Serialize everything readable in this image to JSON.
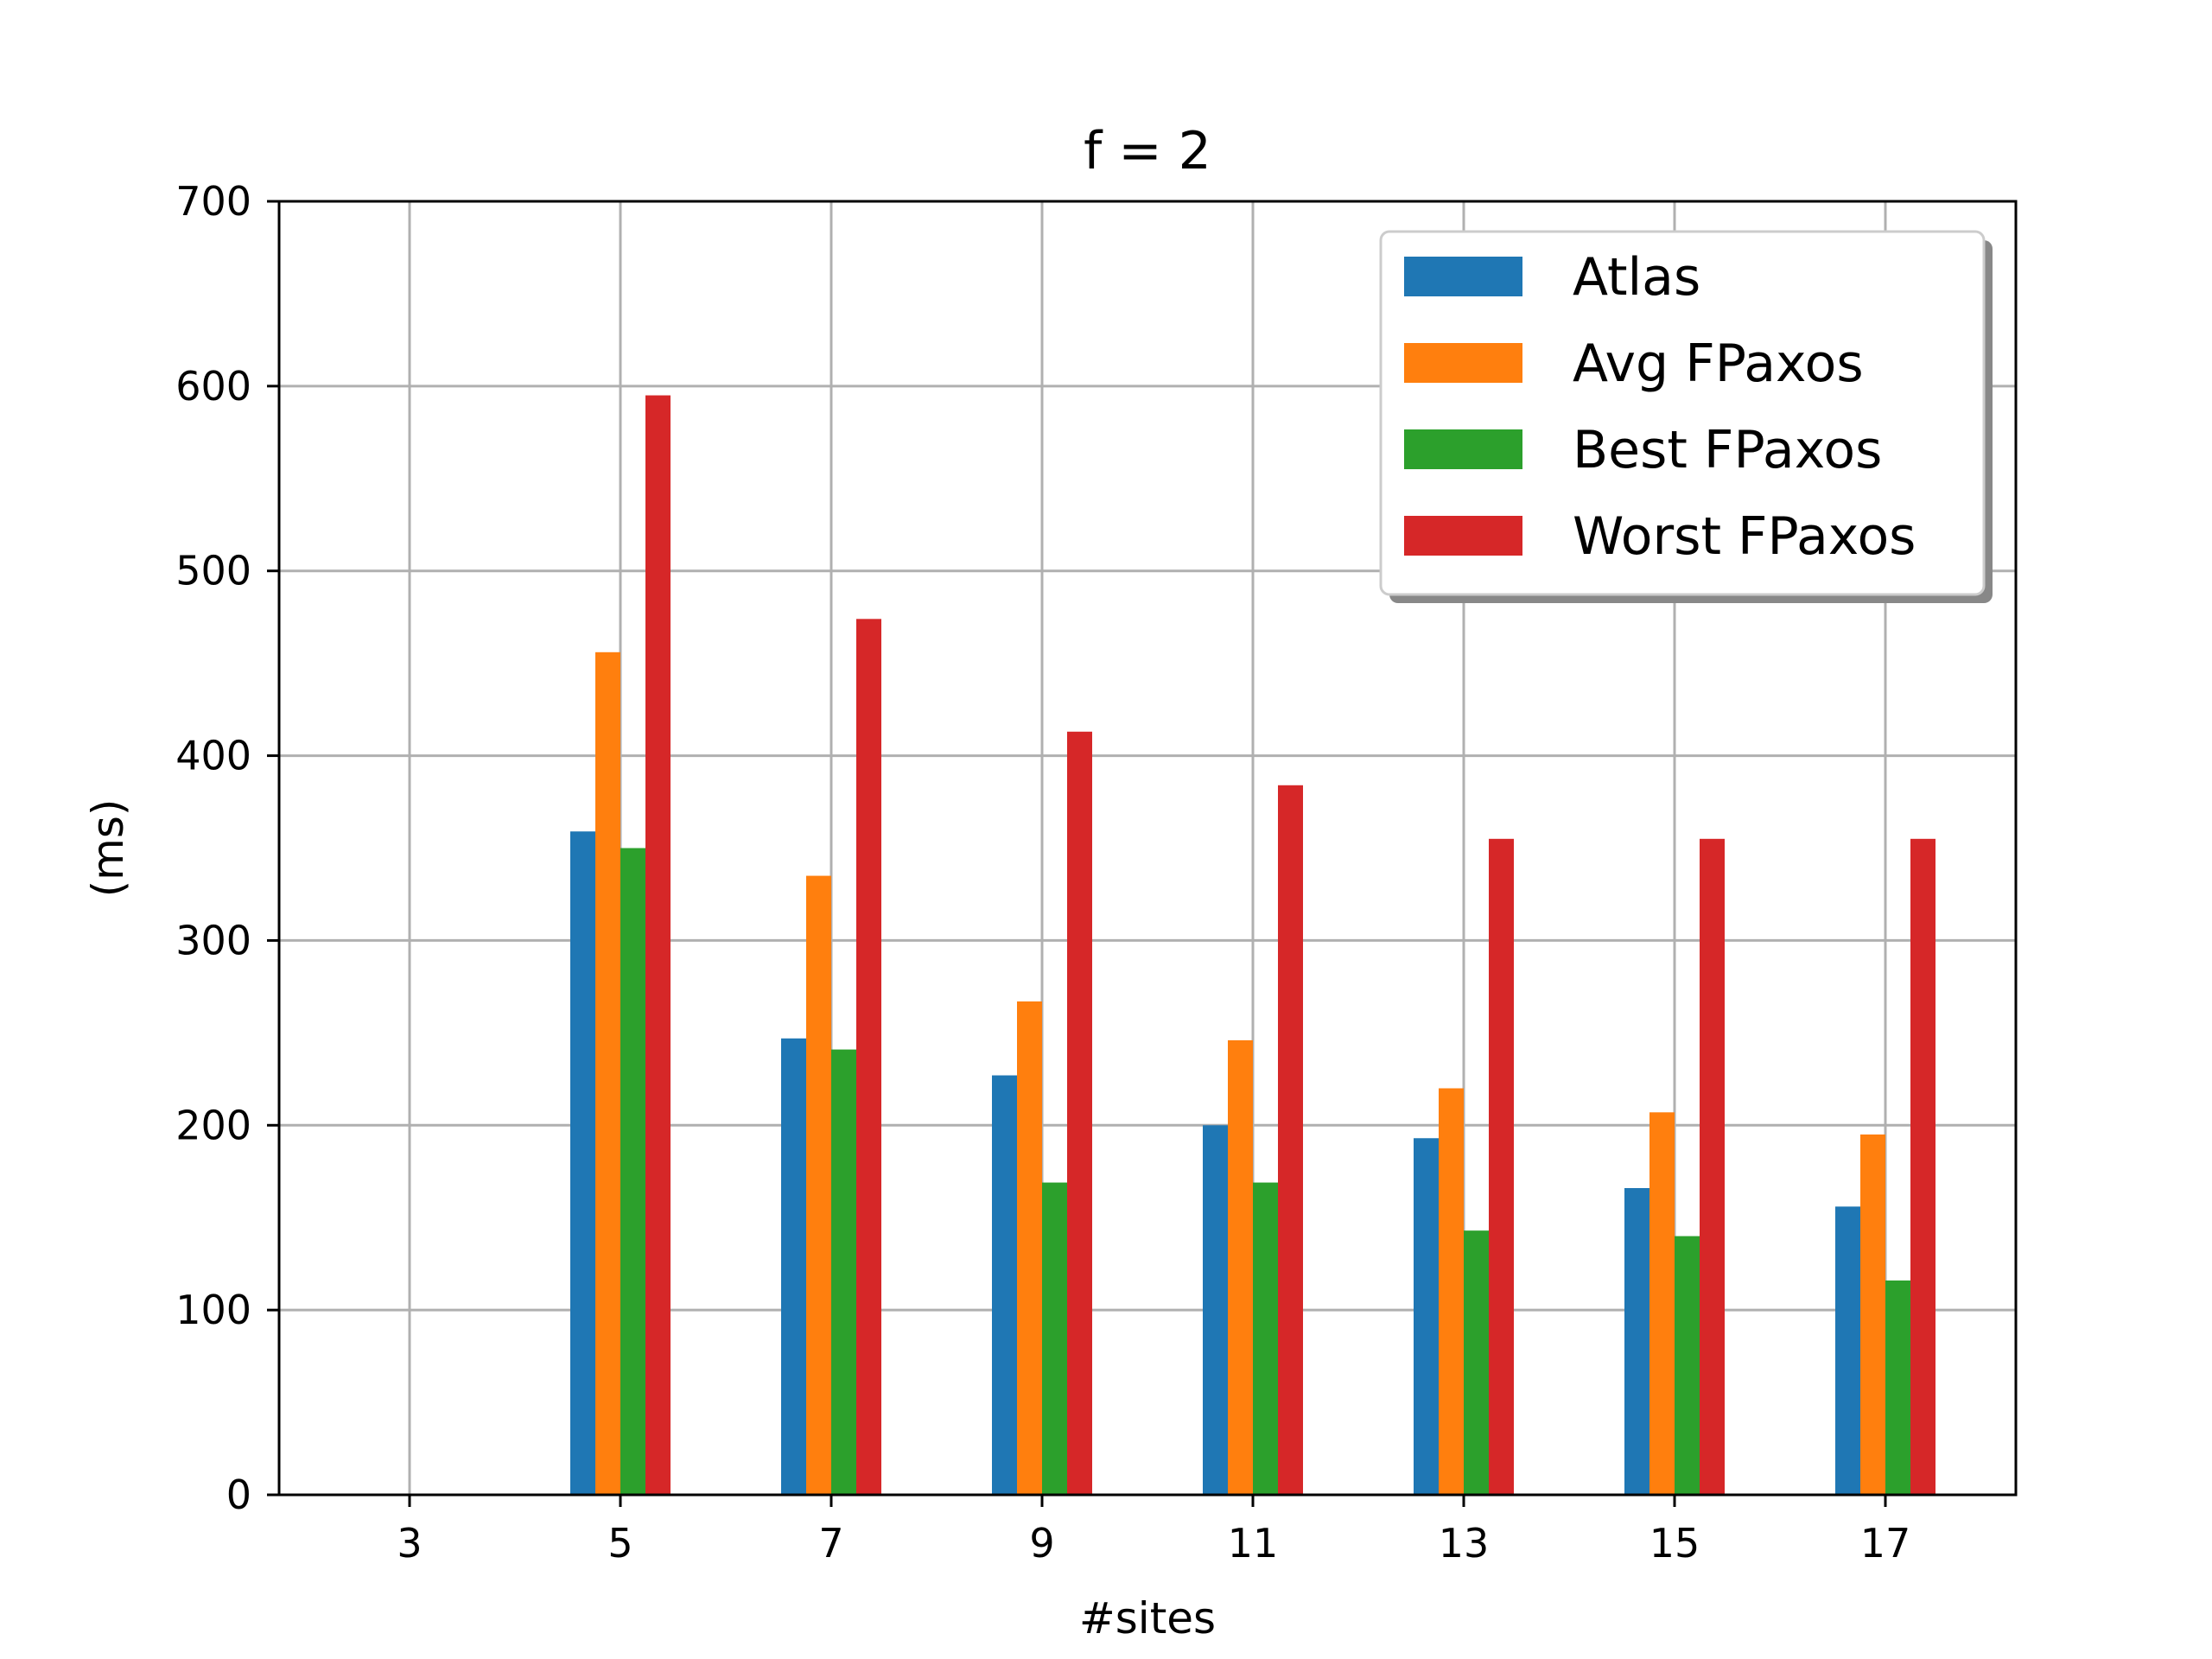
{
  "chart_data": {
    "type": "bar",
    "title": "f = 2",
    "xlabel": "#sites",
    "ylabel": "(ms)",
    "categories": [
      "3",
      "5",
      "7",
      "9",
      "11",
      "13",
      "15",
      "17"
    ],
    "ylim": [
      0,
      700
    ],
    "yticks": [
      0,
      100,
      200,
      300,
      400,
      500,
      600,
      700
    ],
    "grid": true,
    "legend_position": "top-right",
    "series": [
      {
        "name": "Atlas",
        "color": "#1f77b4",
        "values": [
          0,
          359,
          247,
          227,
          200,
          193,
          166,
          156
        ]
      },
      {
        "name": "Avg FPaxos",
        "color": "#ff7f0e",
        "values": [
          0,
          456,
          335,
          267,
          246,
          220,
          207,
          195
        ]
      },
      {
        "name": "Best FPaxos",
        "color": "#2ca02c",
        "values": [
          0,
          350,
          241,
          169,
          169,
          143,
          140,
          116
        ]
      },
      {
        "name": "Worst FPaxos",
        "color": "#d62728",
        "values": [
          0,
          595,
          474,
          413,
          384,
          355,
          355,
          355
        ]
      }
    ]
  }
}
